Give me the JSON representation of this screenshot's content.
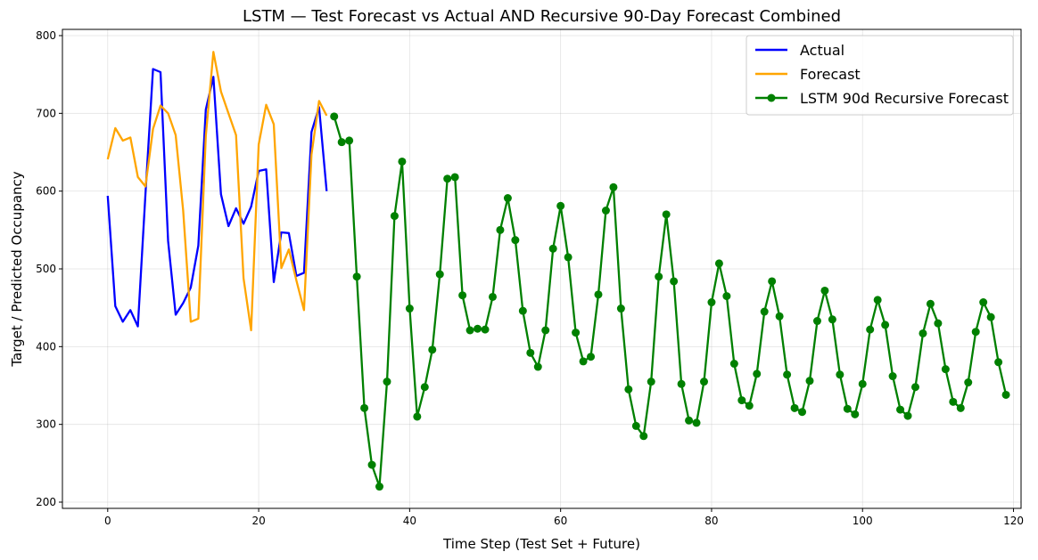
{
  "chart_data": {
    "type": "line",
    "title": "LSTM — Test Forecast vs Actual AND Recursive 90-Day Forecast Combined",
    "xlabel": "Time Step (Test Set + Future)",
    "ylabel": "Target / Predicted Occupancy",
    "xlim": [
      -6,
      121
    ],
    "ylim": [
      192,
      808
    ],
    "xticks": [
      0,
      20,
      40,
      60,
      80,
      100,
      120
    ],
    "yticks": [
      200,
      300,
      400,
      500,
      600,
      700,
      800
    ],
    "grid": true,
    "legend_position": "top-right",
    "series": [
      {
        "name": "Actual",
        "color": "#0000ff",
        "marker": "none",
        "x": [
          0,
          1,
          2,
          3,
          4,
          5,
          6,
          7,
          8,
          9,
          10,
          11,
          12,
          13,
          14,
          15,
          16,
          17,
          18,
          19,
          20,
          21,
          22,
          23,
          24,
          25,
          26,
          27,
          28,
          29
        ],
        "y": [
          594,
          452,
          432,
          447,
          426,
          596,
          757,
          753,
          536,
          441,
          456,
          476,
          530,
          705,
          747,
          596,
          555,
          578,
          558,
          580,
          626,
          628,
          483,
          547,
          546,
          491,
          495,
          676,
          708,
          600
        ]
      },
      {
        "name": "Forecast",
        "color": "#ffa500",
        "marker": "none",
        "x": [
          0,
          1,
          2,
          3,
          4,
          5,
          6,
          7,
          8,
          9,
          10,
          11,
          12,
          13,
          14,
          15,
          16,
          17,
          18,
          19,
          20,
          21,
          22,
          23,
          24,
          25,
          26,
          27,
          28,
          29
        ],
        "y": [
          641,
          681,
          665,
          669,
          618,
          606,
          680,
          710,
          700,
          672,
          575,
          432,
          436,
          671,
          779,
          728,
          700,
          672,
          488,
          421,
          660,
          711,
          686,
          501,
          525,
          485,
          447,
          647,
          716,
          697
        ]
      },
      {
        "name": "LSTM 90d Recursive Forecast",
        "color": "#008000",
        "marker": "circle",
        "x": [
          30,
          31,
          32,
          33,
          34,
          35,
          36,
          37,
          38,
          39,
          40,
          41,
          42,
          43,
          44,
          45,
          46,
          47,
          48,
          49,
          50,
          51,
          52,
          53,
          54,
          55,
          56,
          57,
          58,
          59,
          60,
          61,
          62,
          63,
          64,
          65,
          66,
          67,
          68,
          69,
          70,
          71,
          72,
          73,
          74,
          75,
          76,
          77,
          78,
          79,
          80,
          81,
          82,
          83,
          84,
          85,
          86,
          87,
          88,
          89,
          90,
          91,
          92,
          93,
          94,
          95,
          96,
          97,
          98,
          99,
          100,
          101,
          102,
          103,
          104,
          105,
          106,
          107,
          108,
          109,
          110,
          111,
          112,
          113,
          114,
          115,
          116,
          117,
          118,
          119
        ],
        "y": [
          696,
          663,
          665,
          490,
          321,
          248,
          220,
          355,
          568,
          638,
          449,
          310,
          348,
          396,
          493,
          616,
          618,
          466,
          421,
          423,
          422,
          464,
          550,
          591,
          537,
          446,
          392,
          374,
          421,
          526,
          581,
          515,
          418,
          381,
          387,
          467,
          575,
          605,
          449,
          345,
          298,
          285,
          355,
          490,
          570,
          484,
          352,
          305,
          302,
          355,
          457,
          507,
          465,
          378,
          331,
          324,
          365,
          445,
          484,
          439,
          364,
          321,
          316,
          356,
          433,
          472,
          435,
          364,
          320,
          313,
          352,
          422,
          460,
          428,
          362,
          319,
          311,
          348,
          417,
          455,
          430,
          371,
          329,
          321,
          354,
          419,
          457,
          438,
          380,
          338
        ]
      }
    ]
  }
}
